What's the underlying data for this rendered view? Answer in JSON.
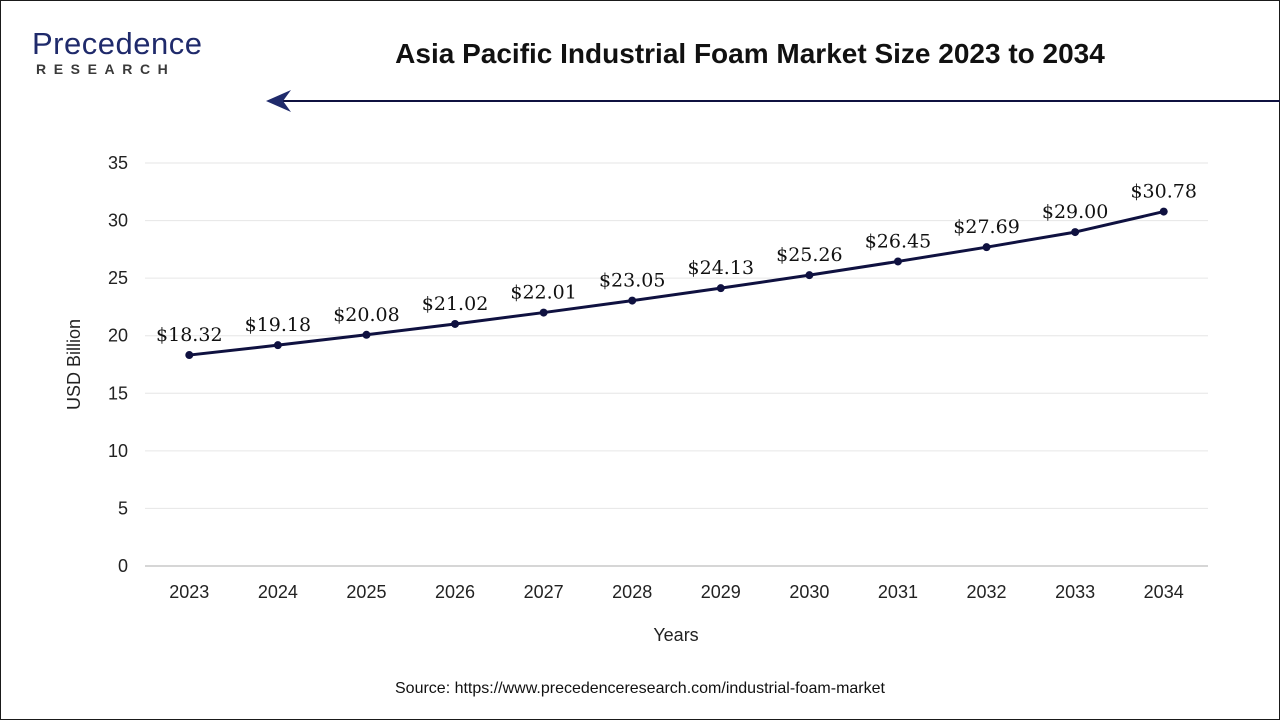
{
  "header": {
    "logo_word": "Precedence",
    "logo_sub": "RESEARCH",
    "title": "Asia Pacific Industrial Foam Market Size 2023 to 2034"
  },
  "footer": {
    "source": "Source: https://www.precedenceresearch.com/industrial-foam-market"
  },
  "colors": {
    "line": "#0f1140",
    "grid": "#e6e6e6",
    "brand": "#1f2a6b"
  },
  "chart_data": {
    "type": "line",
    "title": "Asia Pacific Industrial Foam Market Size 2023 to 2034",
    "xlabel": "Years",
    "ylabel": "USD Billion",
    "ylim": [
      0,
      35
    ],
    "yticks": [
      0,
      5,
      10,
      15,
      20,
      25,
      30,
      35
    ],
    "grid": true,
    "categories": [
      "2023",
      "2024",
      "2025",
      "2026",
      "2027",
      "2028",
      "2029",
      "2030",
      "2031",
      "2032",
      "2033",
      "2034"
    ],
    "series": [
      {
        "values": [
          18.32,
          19.18,
          20.08,
          21.02,
          22.01,
          23.05,
          24.13,
          25.26,
          26.45,
          27.69,
          29.0,
          30.78
        ],
        "labels": [
          "$18.32",
          "$19.18",
          "$20.08",
          "$21.02",
          "$22.01",
          "$23.05",
          "$24.13",
          "$25.26",
          "$26.45",
          "$27.69",
          "$29.00",
          "$30.78"
        ]
      }
    ]
  }
}
